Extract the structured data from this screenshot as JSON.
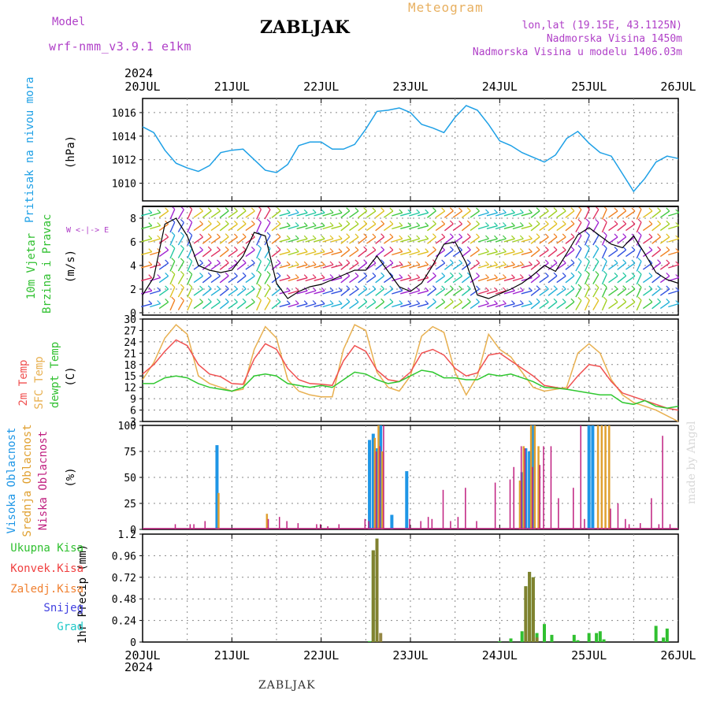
{
  "header": {
    "model_label": "Model",
    "model_name": "wrf-nmm_v3.9.1  e1km",
    "station": "ZABLJAK",
    "meteogram": "Meteogram",
    "lonlat": "lon,lat (19.15E, 43.1125N)",
    "altitude": "Nadmorska Visina 1450m",
    "model_altitude": "Nadmorska Visina u modelu 1406.03m",
    "footer_station": "ZABLJAK",
    "made_by": "made by Angel"
  },
  "time_axis": {
    "year": "2024",
    "days": [
      "20JUL",
      "21JUL",
      "22JUL",
      "23JUL",
      "24JUL",
      "25JUL",
      "26JUL"
    ]
  },
  "panels": {
    "pressure": {
      "label": "Pritisak na nivou mora",
      "unit": "(hPa)"
    },
    "wind": {
      "label1": "10m Vjetar",
      "label2": "Brzina i Pravac",
      "unit": "(m/s)",
      "compass": "W <-|-> E"
    },
    "temp": {
      "label1": "2m Temp",
      "label2": "SFC Temp",
      "label3": "dewpt Temp",
      "unit": "(C)"
    },
    "cloud": {
      "label1": "Visoka Oblacnost",
      "label2": "Srednja Oblacnost",
      "label3": "Niska Oblacnost",
      "unit": "(%)"
    },
    "precip": {
      "unit": "1hr Precip (mm)",
      "legend": [
        "Ukupna Kisa",
        "Konvek.Kisa",
        "Zaledj.Kisa",
        "Snijeg",
        "Grad"
      ]
    }
  },
  "colors": {
    "pressure": "#1ea0e6",
    "temp2m": "#f05050",
    "sfc": "#e8b050",
    "dew": "#30c830",
    "high": "#1e96e6",
    "mid": "#e0a030",
    "low": "#c02080",
    "total": "#30c030",
    "conv": "#f04040",
    "frz": "#f08030",
    "snow": "#4040e0",
    "hail": "#20c8c8",
    "magenta": "#b040c8"
  },
  "chart_data": [
    {
      "type": "line",
      "title": "Pritisak na nivou mora",
      "ylabel": "(hPa)",
      "ylim": [
        1008.5,
        1017.2
      ],
      "yticks": [
        1010,
        1012,
        1014,
        1016
      ],
      "grid": true,
      "x_unit": "hours from 20JUL 00",
      "xlim": [
        0,
        144
      ],
      "series": [
        {
          "name": "Pritisak na nivou mora",
          "x": [
            0,
            3,
            6,
            9,
            12,
            15,
            18,
            21,
            24,
            27,
            30,
            33,
            36,
            39,
            42,
            45,
            48,
            51,
            54,
            57,
            60,
            63,
            66,
            69,
            72,
            75,
            78,
            81,
            84,
            87,
            90,
            93,
            96,
            99,
            102,
            105,
            108,
            111,
            114,
            117,
            120,
            123,
            126,
            129,
            132,
            135,
            138,
            141,
            144
          ],
          "y": [
            1014.8,
            1014.3,
            1012.8,
            1011.7,
            1011.3,
            1011.0,
            1011.5,
            1012.6,
            1012.8,
            1012.9,
            1012.0,
            1011.1,
            1010.9,
            1011.6,
            1013.2,
            1013.5,
            1013.5,
            1012.9,
            1012.9,
            1013.3,
            1014.6,
            1016.1,
            1016.2,
            1016.4,
            1016.0,
            1015.0,
            1014.7,
            1014.3,
            1015.6,
            1016.6,
            1016.2,
            1015.0,
            1013.6,
            1013.2,
            1012.6,
            1012.2,
            1011.8,
            1012.4,
            1013.8,
            1014.4,
            1013.4,
            1012.6,
            1012.3,
            1010.8,
            1009.3,
            1010.4,
            1011.8,
            1012.3,
            1012.1
          ]
        }
      ]
    },
    {
      "type": "line",
      "title": "10m Vjetar Brzina i Pravac",
      "ylabel": "(m/s)",
      "ylim": [
        -0.2,
        9
      ],
      "yticks": [
        0,
        2,
        4,
        6,
        8
      ],
      "grid": true,
      "x_unit": "hours from 20JUL 00",
      "xlim": [
        0,
        144
      ],
      "series": [
        {
          "name": "wind speed",
          "x": [
            0,
            3,
            6,
            9,
            12,
            15,
            18,
            21,
            24,
            27,
            30,
            33,
            36,
            39,
            42,
            45,
            48,
            51,
            54,
            57,
            60,
            63,
            66,
            69,
            72,
            75,
            78,
            81,
            84,
            87,
            90,
            93,
            96,
            99,
            102,
            105,
            108,
            111,
            114,
            117,
            120,
            123,
            126,
            129,
            132,
            135,
            138,
            141,
            144
          ],
          "y": [
            1.5,
            3.0,
            7.5,
            8.0,
            6.5,
            4.0,
            3.6,
            3.4,
            3.6,
            4.8,
            6.8,
            6.5,
            2.5,
            1.2,
            1.8,
            2.2,
            2.4,
            2.8,
            3.2,
            3.6,
            3.6,
            4.8,
            3.5,
            2.2,
            1.8,
            2.5,
            4.0,
            5.8,
            6.0,
            4.2,
            1.5,
            1.2,
            1.6,
            2.0,
            2.5,
            3.2,
            4.0,
            3.5,
            5.0,
            6.6,
            7.2,
            6.5,
            5.8,
            5.5,
            6.5,
            5.0,
            3.4,
            2.8,
            2.5
          ]
        }
      ]
    },
    {
      "type": "line",
      "title": "2m Temp / SFC Temp / dewpt Temp",
      "ylabel": "(C)",
      "ylim": [
        3,
        30
      ],
      "yticks": [
        3,
        6,
        9,
        12,
        15,
        18,
        21,
        24,
        27,
        30
      ],
      "grid": true,
      "x_unit": "hours from 20JUL 00",
      "xlim": [
        0,
        144
      ],
      "series": [
        {
          "name": "2m Temp",
          "x": [
            0,
            3,
            6,
            9,
            12,
            15,
            18,
            21,
            24,
            27,
            30,
            33,
            36,
            39,
            42,
            45,
            48,
            51,
            54,
            57,
            60,
            63,
            66,
            69,
            72,
            75,
            78,
            81,
            84,
            87,
            90,
            93,
            96,
            99,
            102,
            105,
            108,
            111,
            114,
            117,
            120,
            123,
            126,
            129,
            132,
            135,
            138,
            141,
            144
          ],
          "y": [
            15.5,
            18.0,
            21.5,
            24.5,
            23.0,
            18.0,
            15.5,
            14.8,
            13.0,
            12.8,
            19.5,
            23.5,
            22.0,
            17.0,
            14.0,
            13.0,
            12.8,
            12.5,
            19.0,
            23.0,
            21.5,
            16.5,
            14.0,
            13.5,
            16.0,
            21.0,
            22.0,
            20.5,
            17.0,
            15.0,
            15.8,
            20.5,
            21.0,
            19.0,
            17.0,
            15.0,
            12.5,
            12.0,
            11.5,
            15.0,
            18.0,
            17.5,
            13.5,
            10.5,
            9.5,
            8.5,
            7.5,
            6.5,
            6.0
          ]
        },
        {
          "name": "SFC Temp",
          "x": [
            0,
            3,
            6,
            9,
            12,
            15,
            18,
            21,
            24,
            27,
            30,
            33,
            36,
            39,
            42,
            45,
            48,
            51,
            54,
            57,
            60,
            63,
            66,
            69,
            72,
            75,
            78,
            81,
            84,
            87,
            90,
            93,
            96,
            99,
            102,
            105,
            108,
            111,
            114,
            117,
            120,
            123,
            126,
            129,
            132,
            135,
            138,
            141,
            144
          ],
          "y": [
            14.0,
            18.5,
            25.0,
            28.5,
            26.0,
            15.0,
            13.0,
            12.0,
            11.0,
            11.5,
            22.0,
            28.0,
            25.0,
            14.0,
            11.0,
            10.0,
            9.5,
            9.5,
            22.0,
            28.5,
            27.0,
            16.0,
            12.0,
            11.0,
            15.0,
            25.5,
            28.0,
            26.5,
            16.0,
            10.0,
            15.0,
            26.0,
            22.0,
            20.0,
            16.0,
            12.0,
            11.0,
            11.5,
            12.0,
            21.0,
            23.5,
            21.0,
            14.0,
            10.0,
            8.0,
            7.0,
            6.0,
            4.5,
            3.0
          ]
        },
        {
          "name": "dewpt Temp",
          "x": [
            0,
            3,
            6,
            9,
            12,
            15,
            18,
            21,
            24,
            27,
            30,
            33,
            36,
            39,
            42,
            45,
            48,
            51,
            54,
            57,
            60,
            63,
            66,
            69,
            72,
            75,
            78,
            81,
            84,
            87,
            90,
            93,
            96,
            99,
            102,
            105,
            108,
            111,
            114,
            117,
            120,
            123,
            126,
            129,
            132,
            135,
            138,
            141,
            144
          ],
          "y": [
            13.0,
            13.0,
            14.5,
            15.0,
            14.5,
            13.0,
            12.0,
            11.5,
            11.0,
            12.0,
            15.0,
            15.5,
            15.0,
            13.0,
            12.5,
            12.0,
            12.5,
            12.0,
            14.0,
            16.0,
            15.5,
            14.0,
            13.0,
            13.5,
            15.0,
            16.5,
            16.0,
            14.5,
            14.5,
            14.0,
            14.0,
            15.5,
            15.0,
            15.5,
            14.5,
            13.5,
            12.0,
            11.8,
            11.5,
            11.0,
            10.5,
            10.0,
            10.0,
            8.0,
            7.5,
            8.5,
            7.0,
            6.5,
            7.0
          ]
        }
      ]
    },
    {
      "type": "bar",
      "title": "Visoka / Srednja / Niska Oblacnost",
      "ylabel": "(%)",
      "ylim": [
        0,
        100
      ],
      "yticks": [
        0,
        25,
        50,
        75,
        100
      ],
      "grid": true,
      "x_unit": "hours from 20JUL 00",
      "xlim": [
        0,
        144
      ],
      "series": [
        {
          "name": "Visoka Oblacnost",
          "x": [
            20,
            61,
            62,
            63,
            64,
            67,
            71,
            102,
            103,
            104,
            105,
            120,
            121
          ],
          "y": [
            81,
            86,
            92,
            78,
            100,
            14,
            56,
            55,
            78,
            75,
            100,
            100,
            100
          ]
        },
        {
          "name": "Srednja Oblacnost",
          "x": [
            20,
            33,
            62,
            63,
            64,
            101,
            102,
            104,
            105,
            106,
            122,
            123,
            124,
            125
          ],
          "y": [
            35,
            15,
            88,
            100,
            75,
            47,
            80,
            100,
            100,
            80,
            100,
            100,
            100,
            100
          ]
        },
        {
          "name": "Niska Oblacnost",
          "x": [
            9,
            13,
            14,
            17,
            34,
            37,
            39,
            42,
            47,
            48,
            50,
            53,
            60,
            61,
            63,
            64,
            65,
            72,
            75,
            77,
            78,
            81,
            83,
            85,
            87,
            90,
            95,
            99,
            100,
            102,
            103,
            105,
            107,
            108,
            110,
            112,
            116,
            118,
            119,
            126,
            128,
            130,
            131,
            134,
            137,
            139,
            140,
            142
          ],
          "y": [
            5,
            5,
            5,
            8,
            10,
            12,
            8,
            6,
            5,
            5,
            3,
            5,
            10,
            8,
            75,
            80,
            100,
            10,
            8,
            12,
            10,
            38,
            8,
            12,
            40,
            8,
            45,
            48,
            60,
            80,
            78,
            60,
            62,
            80,
            80,
            30,
            40,
            100,
            10,
            20,
            25,
            10,
            5,
            6,
            30,
            5,
            90,
            5
          ]
        }
      ]
    },
    {
      "type": "bar",
      "title": "1hr Precip",
      "ylabel": "1hr Precip (mm)",
      "ylim": [
        0,
        1.2
      ],
      "yticks": [
        0,
        0.24,
        0.48,
        0.72,
        0.96,
        1.2
      ],
      "grid": true,
      "x_unit": "hours from 20JUL 00",
      "xlim": [
        0,
        144
      ],
      "series": [
        {
          "name": "Ukupna Kisa",
          "x": [
            61,
            62,
            63,
            96,
            99,
            102,
            103,
            104,
            105,
            106,
            108,
            110,
            116,
            117,
            120,
            122,
            123,
            124,
            138,
            140,
            141
          ],
          "y": [
            0.01,
            1.02,
            1.15,
            0.01,
            0.04,
            0.12,
            0.62,
            0.78,
            0.72,
            0.1,
            0.2,
            0.08,
            0.08,
            0.02,
            0.1,
            0.1,
            0.12,
            0.03,
            0.18,
            0.05,
            0.15
          ]
        },
        {
          "name": "Konvek.Kisa",
          "x": [
            62,
            63,
            64,
            103,
            104,
            105,
            106
          ],
          "y": [
            1.02,
            1.15,
            0.1,
            0.62,
            0.78,
            0.72,
            0.05
          ]
        }
      ]
    }
  ]
}
